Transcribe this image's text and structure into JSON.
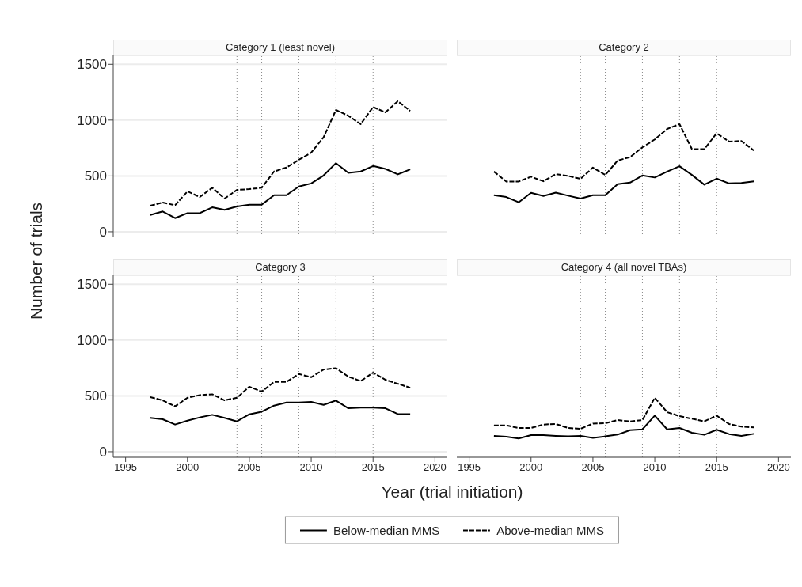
{
  "chart_data": [
    {
      "type": "line",
      "title": "Category 1 (least novel)",
      "ylabel": "Number of trials",
      "legend": "bottom",
      "grid": "y",
      "tick_labels": "y",
      "xlim": [
        1994,
        2021
      ],
      "xticks": [
        1995,
        2000,
        2005,
        2010,
        2015,
        2020
      ],
      "ylim": [
        -50,
        1580
      ],
      "yticks": [
        0,
        500,
        1000,
        1500
      ],
      "x": [
        1997,
        1998,
        1999,
        2000,
        2001,
        2002,
        2003,
        2004,
        2005,
        2006,
        2007,
        2008,
        2009,
        2010,
        2011,
        2012,
        2013,
        2014,
        2015,
        2016,
        2017,
        2018
      ],
      "ref_lines": [
        {
          "axis": "x",
          "value": 2004,
          "line_style": "dotted",
          "color": "#888888"
        },
        {
          "axis": "x",
          "value": 2006,
          "line_style": "dotted",
          "color": "#888888"
        },
        {
          "axis": "x",
          "value": 2009,
          "line_style": "dotted",
          "color": "#888888"
        },
        {
          "axis": "x",
          "value": 2012,
          "line_style": "dotted",
          "color": "#888888"
        },
        {
          "axis": "x",
          "value": 2015,
          "line_style": "dotted",
          "color": "#888888"
        }
      ],
      "series": [
        {
          "name": "Below-median MMS",
          "color": "#000000",
          "line_style": "solid",
          "values": [
            150,
            182,
            122,
            167,
            167,
            219,
            196,
            226,
            243,
            243,
            327,
            327,
            405,
            433,
            504,
            615,
            528,
            540,
            589,
            563,
            514,
            559
          ]
        },
        {
          "name": "Above-median MMS",
          "color": "#000000",
          "line_style": "dashed",
          "values": [
            233,
            262,
            238,
            361,
            311,
            394,
            297,
            375,
            382,
            394,
            540,
            575,
            645,
            709,
            846,
            1091,
            1039,
            964,
            1117,
            1070,
            1169,
            1082
          ]
        }
      ]
    },
    {
      "type": "line",
      "title": "Category 2",
      "grid": "y",
      "tick_labels": false,
      "xlim": [
        1994,
        2021
      ],
      "xticks": [
        1995,
        2000,
        2005,
        2010,
        2015,
        2020
      ],
      "ylim": [
        -50,
        1580
      ],
      "yticks": [
        0,
        500,
        1000,
        1500
      ],
      "x": [
        1997,
        1998,
        1999,
        2000,
        2001,
        2002,
        2003,
        2004,
        2005,
        2006,
        2007,
        2008,
        2009,
        2010,
        2011,
        2012,
        2013,
        2014,
        2015,
        2016,
        2017,
        2018
      ],
      "ref_lines": [
        {
          "axis": "x",
          "value": 2004,
          "line_style": "dotted",
          "color": "#888888"
        },
        {
          "axis": "x",
          "value": 2006,
          "line_style": "dotted",
          "color": "#888888"
        },
        {
          "axis": "x",
          "value": 2009,
          "line_style": "dotted",
          "color": "#888888"
        },
        {
          "axis": "x",
          "value": 2012,
          "line_style": "dotted",
          "color": "#888888"
        },
        {
          "axis": "x",
          "value": 2015,
          "line_style": "dotted",
          "color": "#888888"
        }
      ],
      "series": [
        {
          "color": "#000000",
          "line_style": "solid",
          "values": [
            327,
            311,
            264,
            349,
            320,
            351,
            323,
            297,
            327,
            327,
            426,
            440,
            504,
            486,
            539,
            587,
            509,
            422,
            476,
            433,
            438,
            452
          ]
        },
        {
          "color": "#000000",
          "line_style": "dashed",
          "values": [
            539,
            450,
            450,
            493,
            452,
            516,
            500,
            474,
            575,
            509,
            638,
            669,
            756,
            827,
            921,
            964,
            740,
            740,
            882,
            808,
            813,
            728
          ]
        }
      ]
    },
    {
      "type": "line",
      "title": "Category 3",
      "xlabel": "Year (trial initiation)",
      "grid": "y",
      "xlim": [
        1994,
        2021
      ],
      "xticks": [
        1995,
        2000,
        2005,
        2010,
        2015,
        2020
      ],
      "ylim": [
        -50,
        1580
      ],
      "yticks": [
        0,
        500,
        1000,
        1500
      ],
      "x": [
        1997,
        1998,
        1999,
        2000,
        2001,
        2002,
        2003,
        2004,
        2005,
        2006,
        2007,
        2008,
        2009,
        2010,
        2011,
        2012,
        2013,
        2014,
        2015,
        2016,
        2017,
        2018
      ],
      "ref_lines": [
        {
          "axis": "x",
          "value": 2004,
          "line_style": "dotted",
          "color": "#888888"
        },
        {
          "axis": "x",
          "value": 2006,
          "line_style": "dotted",
          "color": "#888888"
        },
        {
          "axis": "x",
          "value": 2009,
          "line_style": "dotted",
          "color": "#888888"
        },
        {
          "axis": "x",
          "value": 2012,
          "line_style": "dotted",
          "color": "#888888"
        },
        {
          "axis": "x",
          "value": 2015,
          "line_style": "dotted",
          "color": "#888888"
        }
      ],
      "series": [
        {
          "color": "#000000",
          "line_style": "solid",
          "values": [
            302,
            290,
            243,
            278,
            307,
            330,
            302,
            271,
            335,
            358,
            413,
            441,
            441,
            446,
            420,
            458,
            389,
            394,
            394,
            389,
            337,
            337
          ]
        },
        {
          "color": "#000000",
          "line_style": "dashed",
          "values": [
            488,
            460,
            406,
            483,
            507,
            514,
            460,
            483,
            582,
            538,
            625,
            625,
            696,
            667,
            736,
            748,
            672,
            632,
            708,
            644,
            608,
            573
          ]
        }
      ]
    },
    {
      "type": "line",
      "title": "Category 4 (all novel TBAs)",
      "grid": "y",
      "tick_labels": "x",
      "xlim": [
        1994,
        2021
      ],
      "xticks": [
        1995,
        2000,
        2005,
        2010,
        2015,
        2020
      ],
      "ylim": [
        -50,
        1580
      ],
      "yticks": [
        0,
        500,
        1000,
        1500
      ],
      "x": [
        1997,
        1998,
        1999,
        2000,
        2001,
        2002,
        2003,
        2004,
        2005,
        2006,
        2007,
        2008,
        2009,
        2010,
        2011,
        2012,
        2013,
        2014,
        2015,
        2016,
        2017,
        2018
      ],
      "ref_lines": [
        {
          "axis": "x",
          "value": 2004,
          "line_style": "dotted",
          "color": "#888888"
        },
        {
          "axis": "x",
          "value": 2006,
          "line_style": "dotted",
          "color": "#888888"
        },
        {
          "axis": "x",
          "value": 2009,
          "line_style": "dotted",
          "color": "#888888"
        },
        {
          "axis": "x",
          "value": 2012,
          "line_style": "dotted",
          "color": "#888888"
        },
        {
          "axis": "x",
          "value": 2015,
          "line_style": "dotted",
          "color": "#888888"
        }
      ],
      "series": [
        {
          "color": "#000000",
          "line_style": "solid",
          "values": [
            142,
            134,
            118,
            149,
            149,
            142,
            137,
            142,
            123,
            137,
            153,
            193,
            200,
            323,
            200,
            212,
            170,
            151,
            196,
            158,
            142,
            160
          ]
        },
        {
          "color": "#000000",
          "line_style": "dashed",
          "values": [
            236,
            236,
            212,
            212,
            243,
            248,
            212,
            205,
            252,
            255,
            283,
            271,
            283,
            483,
            354,
            318,
            295,
            271,
            323,
            248,
            224,
            217
          ]
        }
      ]
    }
  ]
}
